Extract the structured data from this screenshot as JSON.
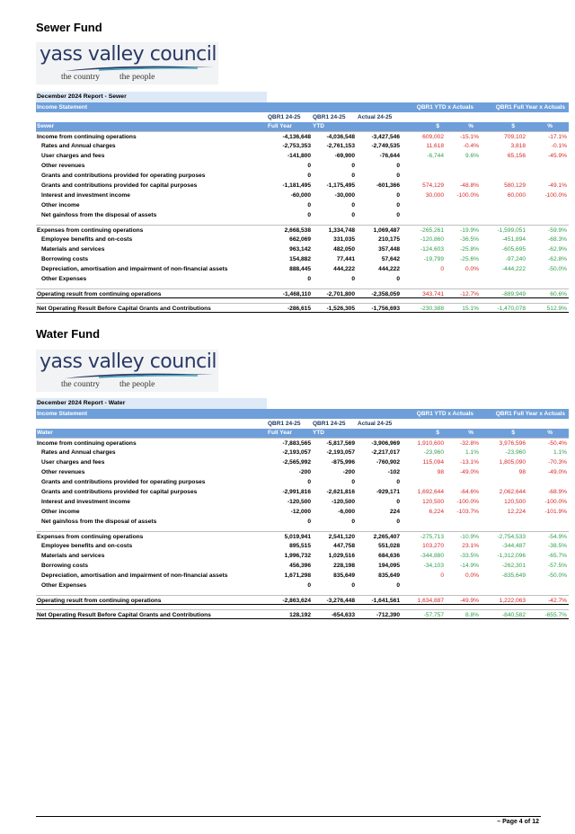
{
  "page": {
    "footer": "– Page 4 of 12"
  },
  "logo": {
    "name": "yass valley council",
    "tag1": "the country",
    "tag2": "the people"
  },
  "columns": {
    "qbr_full_1": "QBR1 24-25",
    "qbr_full_2": "Full Year",
    "qbr_ytd_1": "QBR1 24-25",
    "qbr_ytd_2": "YTD",
    "actual": "Actual 24-25",
    "ytd_group": "QBR1 YTD x Actuals",
    "fy_group": "QBR1 Full Year x Actuals",
    "dollar": "$",
    "pct": "%"
  },
  "sewer": {
    "section_title": "Sewer Fund",
    "report_title": "December 2024 Report - Sewer",
    "statement": "Income Statement",
    "fund_label": "Sewer",
    "rows": [
      {
        "label": "Income from continuing operations",
        "type": "head",
        "v": [
          "-4,136,648",
          "-4,036,548",
          "-3,427,546"
        ],
        "c": [
          "609,002",
          "-15.1%",
          "709,102",
          "-17.1%"
        ],
        "col": [
          "pos",
          "pos",
          "pos",
          "pos"
        ]
      },
      {
        "label": "Rates and Annual charges",
        "type": "sub",
        "v": [
          "-2,753,353",
          "-2,761,153",
          "-2,749,535"
        ],
        "c": [
          "11,618",
          "-0.4%",
          "3,818",
          "-0.1%"
        ],
        "col": [
          "pos",
          "pos",
          "pos",
          "pos"
        ]
      },
      {
        "label": "User charges and fees",
        "type": "sub",
        "v": [
          "-141,800",
          "-69,900",
          "-76,644"
        ],
        "c": [
          "-6,744",
          "9.6%",
          "65,156",
          "-45.9%"
        ],
        "col": [
          "neg",
          "neg",
          "pos",
          "pos"
        ]
      },
      {
        "label": "Other revenues",
        "type": "sub",
        "v": [
          "0",
          "0",
          "0"
        ],
        "c": [
          "",
          "",
          "",
          ""
        ],
        "col": [
          "",
          "",
          "",
          ""
        ]
      },
      {
        "label": "Grants and contributions provided for operating purposes",
        "type": "sub",
        "v": [
          "0",
          "0",
          "0"
        ],
        "c": [
          "",
          "",
          "",
          ""
        ],
        "col": [
          "",
          "",
          "",
          ""
        ]
      },
      {
        "label": "Grants and contributions provided for capital purposes",
        "type": "sub",
        "v": [
          "-1,181,495",
          "-1,175,495",
          "-601,366"
        ],
        "c": [
          "574,129",
          "-48.8%",
          "580,129",
          "-49.1%"
        ],
        "col": [
          "pos",
          "pos",
          "pos",
          "pos"
        ]
      },
      {
        "label": "Interest and investment income",
        "type": "sub",
        "v": [
          "-60,000",
          "-30,000",
          "0"
        ],
        "c": [
          "30,000",
          "-100.0%",
          "60,000",
          "-100.0%"
        ],
        "col": [
          "pos",
          "pos",
          "pos",
          "pos"
        ]
      },
      {
        "label": "Other income",
        "type": "sub",
        "v": [
          "0",
          "0",
          "0"
        ],
        "c": [
          "",
          "",
          "",
          ""
        ],
        "col": [
          "",
          "",
          "",
          ""
        ]
      },
      {
        "label": "Net gain/loss from the disposal of assets",
        "type": "sub",
        "v": [
          "0",
          "0",
          "0"
        ],
        "c": [
          "",
          "",
          "",
          ""
        ],
        "col": [
          "",
          "",
          "",
          ""
        ]
      },
      {
        "label": "Expenses from continuing operations",
        "type": "head",
        "v": [
          "2,668,538",
          "1,334,748",
          "1,069,487"
        ],
        "c": [
          "-265,261",
          "-19.9%",
          "-1,599,051",
          "-59.9%"
        ],
        "col": [
          "neg",
          "neg",
          "neg",
          "neg"
        ]
      },
      {
        "label": "Employee benefits and on-costs",
        "type": "sub",
        "v": [
          "662,069",
          "331,035",
          "210,175"
        ],
        "c": [
          "-120,860",
          "-36.5%",
          "-451,894",
          "-68.3%"
        ],
        "col": [
          "neg",
          "neg",
          "neg",
          "neg"
        ]
      },
      {
        "label": "Materials and services",
        "type": "sub",
        "v": [
          "963,142",
          "482,050",
          "357,448"
        ],
        "c": [
          "-124,603",
          "-25.8%",
          "-605,695",
          "-62.9%"
        ],
        "col": [
          "neg",
          "neg",
          "neg",
          "neg"
        ]
      },
      {
        "label": "Borrowing costs",
        "type": "sub",
        "v": [
          "154,882",
          "77,441",
          "57,642"
        ],
        "c": [
          "-19,799",
          "-25.6%",
          "-97,240",
          "-62.8%"
        ],
        "col": [
          "neg",
          "neg",
          "neg",
          "neg"
        ]
      },
      {
        "label": "Depreciation, amortisation and impairment of non-financial assets",
        "type": "sub",
        "v": [
          "888,445",
          "444,222",
          "444,222"
        ],
        "c": [
          "0",
          "0.0%",
          "-444,222",
          "-50.0%"
        ],
        "col": [
          "pos",
          "pos",
          "neg",
          "neg"
        ]
      },
      {
        "label": "Other Expenses",
        "type": "sub",
        "v": [
          "0",
          "0",
          "0"
        ],
        "c": [
          "",
          "",
          "",
          ""
        ],
        "col": [
          "",
          "",
          "",
          ""
        ]
      },
      {
        "label": "Operating result from continuing operations",
        "type": "total",
        "v": [
          "-1,468,110",
          "-2,701,800",
          "-2,358,059"
        ],
        "c": [
          "343,741",
          "-12.7%",
          "-889,949",
          "60.6%"
        ],
        "col": [
          "pos",
          "pos",
          "neg",
          "neg"
        ]
      },
      {
        "label": "Net Operating Result Before Capital Grants and Contributions",
        "type": "total",
        "v": [
          "-286,615",
          "-1,526,305",
          "-1,756,693"
        ],
        "c": [
          "-230,388",
          "15.1%",
          "-1,470,078",
          "512.9%"
        ],
        "col": [
          "neg",
          "neg",
          "neg",
          "neg"
        ]
      }
    ]
  },
  "water": {
    "section_title": "Water Fund",
    "report_title": "December 2024 Report - Water",
    "statement": "Income Statement",
    "fund_label": "Water",
    "rows": [
      {
        "label": "Income from continuing operations",
        "type": "head",
        "v": [
          "-7,883,565",
          "-5,817,569",
          "-3,906,969"
        ],
        "c": [
          "1,910,600",
          "-32.8%",
          "3,976,596",
          "-50.4%"
        ],
        "col": [
          "pos",
          "pos",
          "pos",
          "pos"
        ]
      },
      {
        "label": "Rates and Annual charges",
        "type": "sub",
        "v": [
          "-2,193,057",
          "-2,193,057",
          "-2,217,017"
        ],
        "c": [
          "-23,960",
          "1.1%",
          "-23,960",
          "1.1%"
        ],
        "col": [
          "neg",
          "neg",
          "neg",
          "neg"
        ]
      },
      {
        "label": "User charges and fees",
        "type": "sub",
        "v": [
          "-2,565,992",
          "-875,996",
          "-760,902"
        ],
        "c": [
          "115,094",
          "-13.1%",
          "1,805,090",
          "-70.3%"
        ],
        "col": [
          "pos",
          "pos",
          "pos",
          "pos"
        ]
      },
      {
        "label": "Other revenues",
        "type": "sub",
        "v": [
          "-200",
          "-200",
          "-102"
        ],
        "c": [
          "98",
          "-49.0%",
          "98",
          "-49.0%"
        ],
        "col": [
          "pos",
          "pos",
          "pos",
          "pos"
        ]
      },
      {
        "label": "Grants and contributions provided for operating purposes",
        "type": "sub",
        "v": [
          "0",
          "0",
          "0"
        ],
        "c": [
          "",
          "",
          "",
          ""
        ],
        "col": [
          "",
          "",
          "",
          ""
        ]
      },
      {
        "label": "Grants and contributions provided for capital purposes",
        "type": "sub",
        "v": [
          "-2,991,816",
          "-2,621,816",
          "-929,171"
        ],
        "c": [
          "1,692,644",
          "-64.6%",
          "2,062,644",
          "-68.9%"
        ],
        "col": [
          "pos",
          "pos",
          "pos",
          "pos"
        ]
      },
      {
        "label": "Interest and investment income",
        "type": "sub",
        "v": [
          "-120,500",
          "-120,500",
          "0"
        ],
        "c": [
          "120,500",
          "-100.0%",
          "120,500",
          "-100.0%"
        ],
        "col": [
          "pos",
          "pos",
          "pos",
          "pos"
        ]
      },
      {
        "label": "Other income",
        "type": "sub",
        "v": [
          "-12,000",
          "-6,000",
          "224"
        ],
        "c": [
          "6,224",
          "-103.7%",
          "12,224",
          "-101.9%"
        ],
        "col": [
          "pos",
          "pos",
          "pos",
          "pos"
        ]
      },
      {
        "label": "Net gain/loss from the disposal of assets",
        "type": "sub",
        "v": [
          "0",
          "0",
          "0"
        ],
        "c": [
          "",
          "",
          "",
          ""
        ],
        "col": [
          "",
          "",
          "",
          ""
        ]
      },
      {
        "label": "Expenses from continuing operations",
        "type": "head",
        "v": [
          "5,019,941",
          "2,541,120",
          "2,265,407"
        ],
        "c": [
          "-275,713",
          "-10.9%",
          "-2,754,533",
          "-54.9%"
        ],
        "col": [
          "neg",
          "neg",
          "neg",
          "neg"
        ]
      },
      {
        "label": "Employee benefits and on-costs",
        "type": "sub",
        "v": [
          "895,515",
          "447,758",
          "551,028"
        ],
        "c": [
          "103,270",
          "23.1%",
          "-344,487",
          "-38.5%"
        ],
        "col": [
          "pos",
          "pos",
          "neg",
          "neg"
        ]
      },
      {
        "label": "Materials and services",
        "type": "sub",
        "v": [
          "1,996,732",
          "1,029,516",
          "684,636"
        ],
        "c": [
          "-344,880",
          "-33.5%",
          "-1,312,096",
          "-65.7%"
        ],
        "col": [
          "neg",
          "neg",
          "neg",
          "neg"
        ]
      },
      {
        "label": "Borrowing costs",
        "type": "sub",
        "v": [
          "456,396",
          "228,198",
          "194,095"
        ],
        "c": [
          "-34,103",
          "-14.9%",
          "-262,301",
          "-57.5%"
        ],
        "col": [
          "neg",
          "neg",
          "neg",
          "neg"
        ]
      },
      {
        "label": "Depreciation, amortisation and impairment of non-financial assets",
        "type": "sub",
        "v": [
          "1,671,298",
          "835,649",
          "835,649"
        ],
        "c": [
          "0",
          "0.0%",
          "-835,649",
          "-50.0%"
        ],
        "col": [
          "pos",
          "pos",
          "neg",
          "neg"
        ]
      },
      {
        "label": "Other Expenses",
        "type": "sub",
        "v": [
          "0",
          "0",
          "0"
        ],
        "c": [
          "",
          "",
          "",
          ""
        ],
        "col": [
          "",
          "",
          "",
          ""
        ]
      },
      {
        "label": "Operating result from continuing operations",
        "type": "total",
        "v": [
          "-2,863,624",
          "-3,276,448",
          "-1,641,561"
        ],
        "c": [
          "1,634,887",
          "-49.9%",
          "1,222,063",
          "-42.7%"
        ],
        "col": [
          "pos",
          "pos",
          "pos",
          "pos"
        ]
      },
      {
        "label": "Net Operating Result Before Capital Grants and Contributions",
        "type": "total",
        "v": [
          "128,192",
          "-654,633",
          "-712,390"
        ],
        "c": [
          "-57,757",
          "8.8%",
          "-840,582",
          "-655.7%"
        ],
        "col": [
          "neg",
          "neg",
          "neg",
          "neg"
        ]
      }
    ]
  }
}
